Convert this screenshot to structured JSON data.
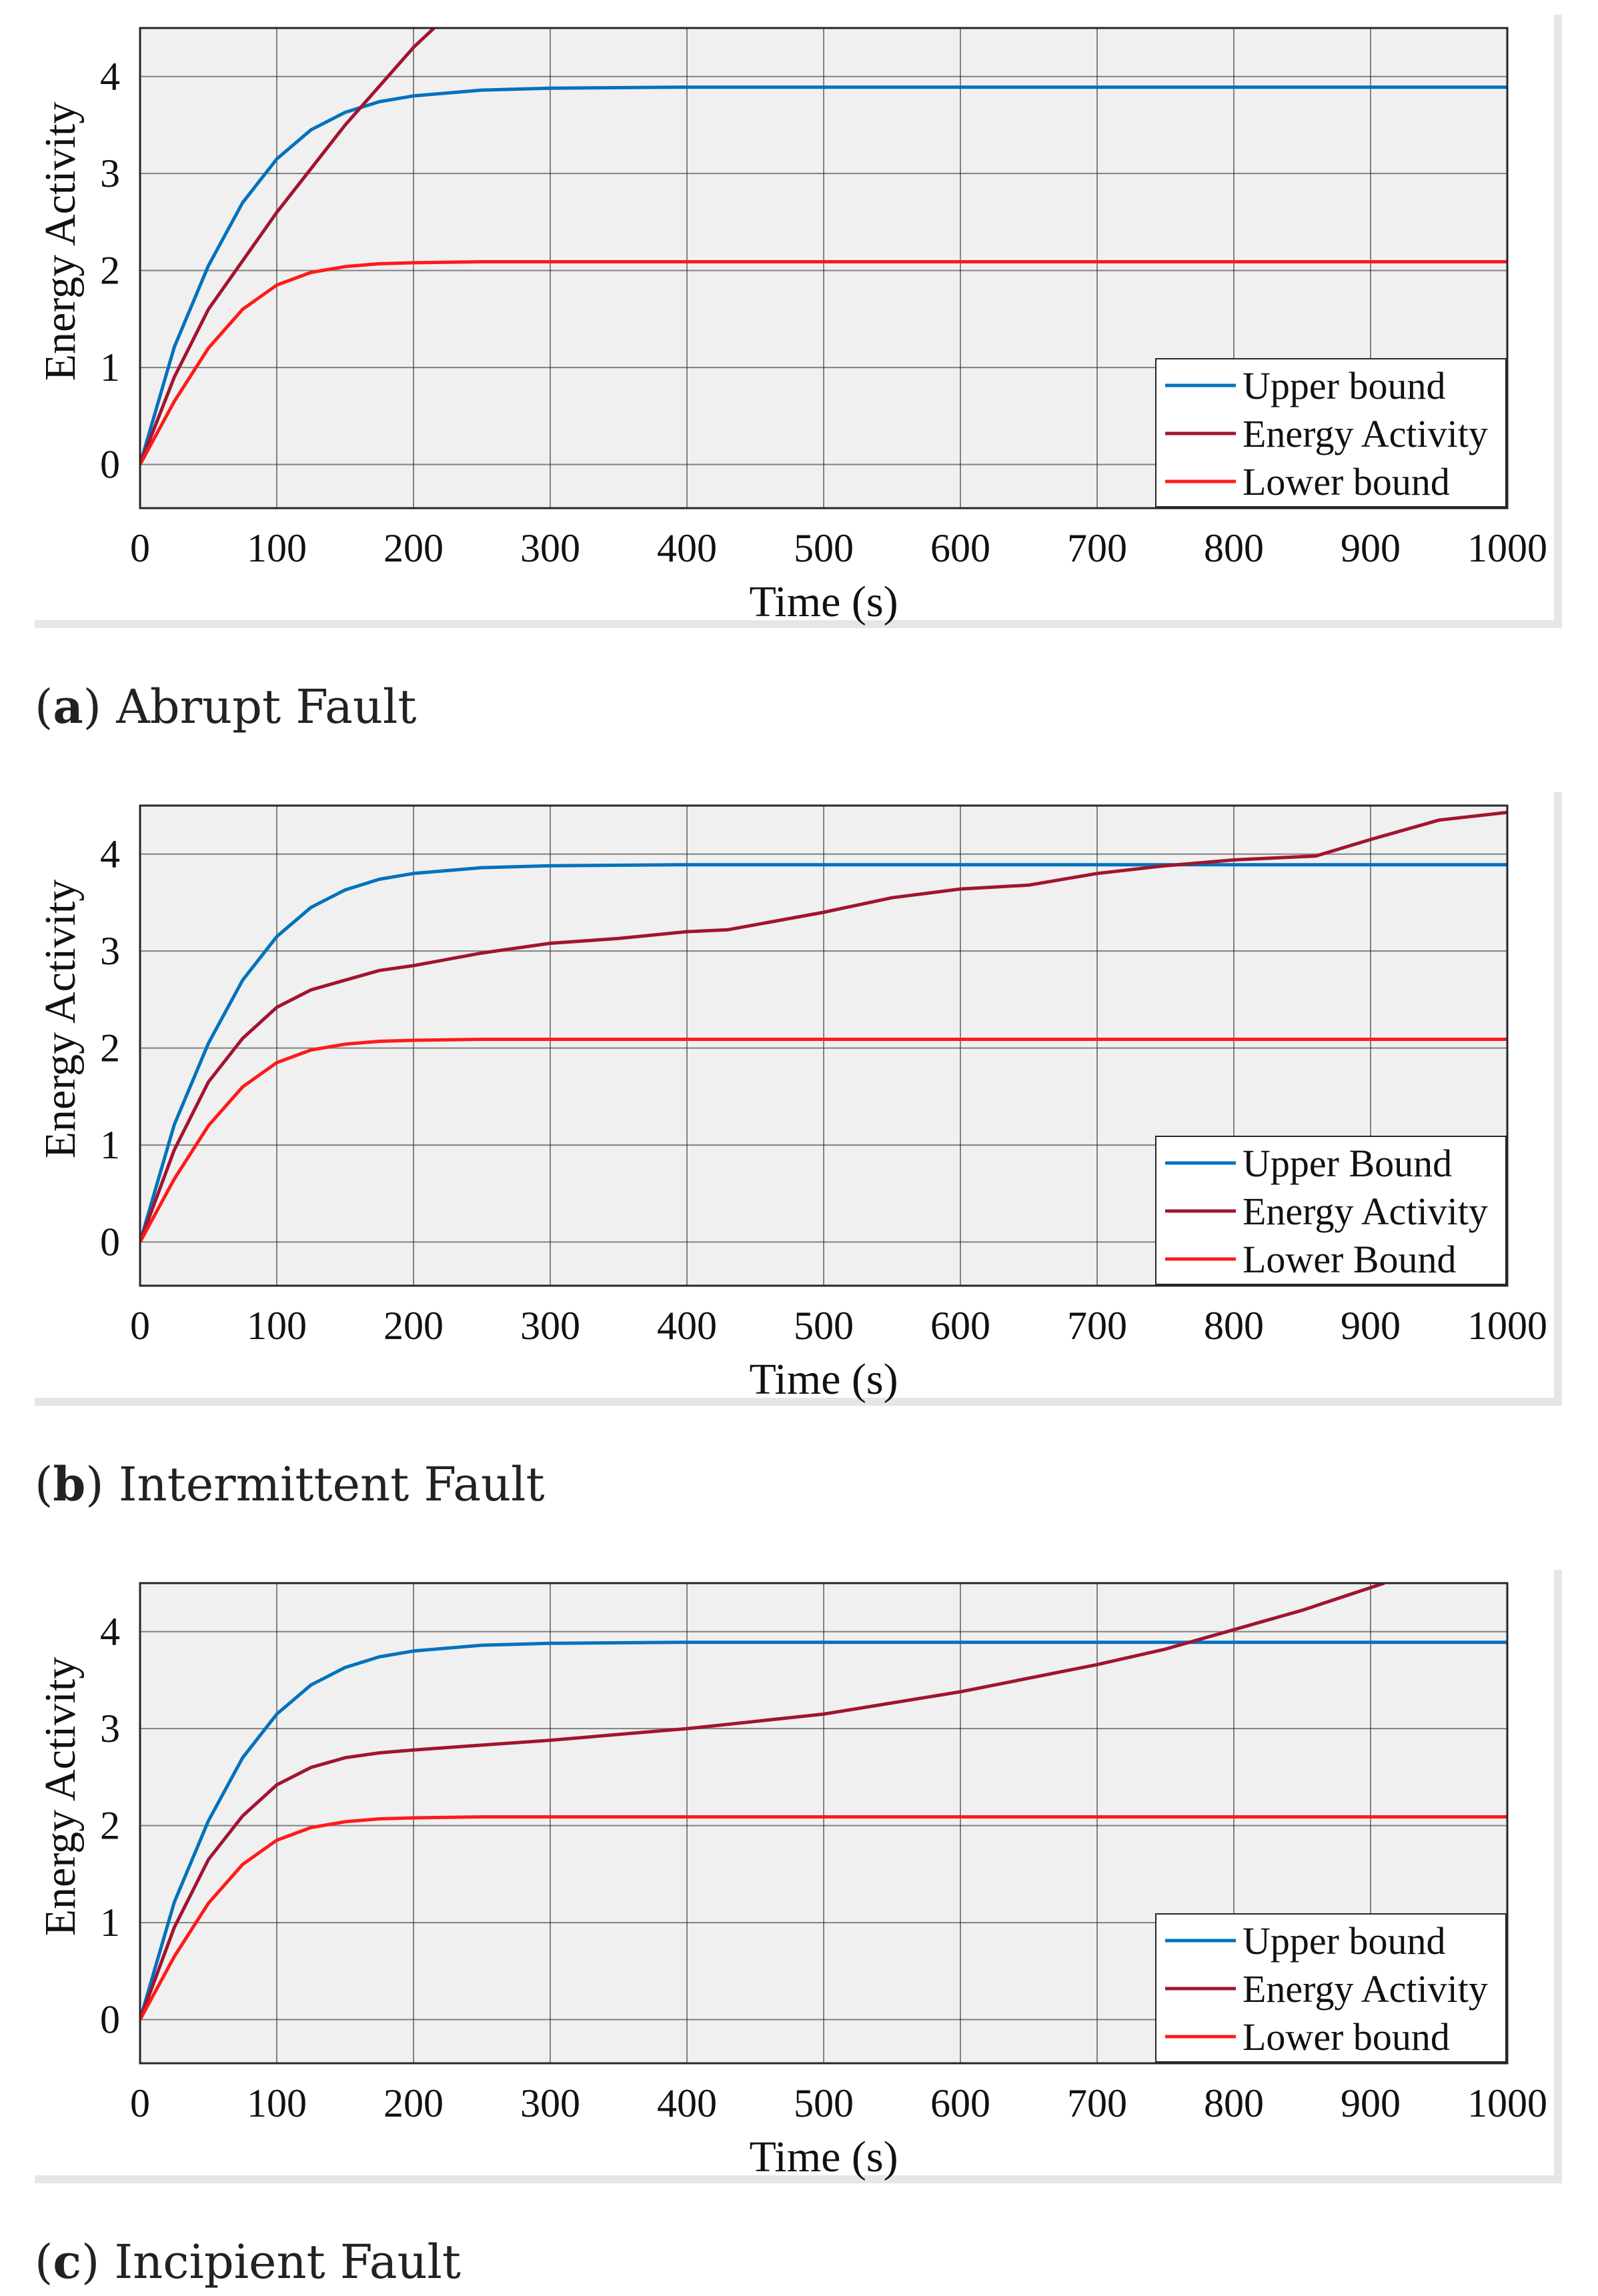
{
  "chart_data": [
    {
      "type": "line",
      "panel_label": "a",
      "caption": "Abrupt Fault",
      "xlabel": "Time (s)",
      "ylabel": "Energy Activity",
      "xlim": [
        0,
        1000
      ],
      "ylim": [
        -0.45,
        4.5
      ],
      "xticks": [
        "0",
        "100",
        "200",
        "300",
        "400",
        "500",
        "600",
        "700",
        "800",
        "900",
        "1000"
      ],
      "yticks": [
        "0",
        "1",
        "2",
        "3",
        "4"
      ],
      "grid": true,
      "legend_position": "bottom-right",
      "series": [
        {
          "name": "Upper bound",
          "color": "#0072BD",
          "x": [
            0,
            25,
            50,
            75,
            100,
            125,
            150,
            175,
            200,
            250,
            300,
            400,
            500,
            600,
            700,
            800,
            900,
            1000
          ],
          "y": [
            0,
            1.21,
            2.05,
            2.7,
            3.15,
            3.45,
            3.63,
            3.74,
            3.8,
            3.86,
            3.88,
            3.89,
            3.89,
            3.89,
            3.89,
            3.89,
            3.89,
            3.89
          ]
        },
        {
          "name": "Energy Activity",
          "color": "#A2142F",
          "x": [
            0,
            25,
            50,
            75,
            100,
            125,
            150,
            175,
            200,
            215
          ],
          "y": [
            0,
            0.9,
            1.6,
            2.1,
            2.6,
            3.05,
            3.5,
            3.9,
            4.3,
            4.5
          ]
        },
        {
          "name": "Lower bound",
          "color": "#FF1A1A",
          "x": [
            0,
            25,
            50,
            75,
            100,
            125,
            150,
            175,
            200,
            250,
            300,
            400,
            500,
            600,
            700,
            800,
            900,
            1000
          ],
          "y": [
            0,
            0.65,
            1.2,
            1.6,
            1.85,
            1.98,
            2.04,
            2.07,
            2.08,
            2.09,
            2.09,
            2.09,
            2.09,
            2.09,
            2.09,
            2.09,
            2.09,
            2.09
          ]
        }
      ]
    },
    {
      "type": "line",
      "panel_label": "b",
      "caption": "Intermittent Fault",
      "xlabel": "Time (s)",
      "ylabel": "Energy Activity",
      "xlim": [
        0,
        1000
      ],
      "ylim": [
        -0.45,
        4.5
      ],
      "xticks": [
        "0",
        "100",
        "200",
        "300",
        "400",
        "500",
        "600",
        "700",
        "800",
        "900",
        "1000"
      ],
      "yticks": [
        "0",
        "1",
        "2",
        "3",
        "4"
      ],
      "grid": true,
      "legend_position": "bottom-right",
      "series": [
        {
          "name": "Upper Bound",
          "color": "#0072BD",
          "x": [
            0,
            25,
            50,
            75,
            100,
            125,
            150,
            175,
            200,
            250,
            300,
            400,
            500,
            600,
            700,
            800,
            900,
            1000
          ],
          "y": [
            0,
            1.21,
            2.05,
            2.7,
            3.15,
            3.45,
            3.63,
            3.74,
            3.8,
            3.86,
            3.88,
            3.89,
            3.89,
            3.89,
            3.89,
            3.89,
            3.89,
            3.89
          ]
        },
        {
          "name": "Energy Activity",
          "color": "#A2142F",
          "x": [
            0,
            25,
            50,
            75,
            100,
            125,
            150,
            175,
            200,
            250,
            300,
            350,
            400,
            430,
            500,
            550,
            600,
            650,
            700,
            750,
            800,
            860,
            900,
            950,
            1000
          ],
          "y": [
            0,
            0.95,
            1.65,
            2.1,
            2.42,
            2.6,
            2.7,
            2.8,
            2.85,
            2.98,
            3.08,
            3.13,
            3.2,
            3.22,
            3.4,
            3.55,
            3.64,
            3.68,
            3.8,
            3.88,
            3.94,
            3.98,
            4.15,
            4.35,
            4.43
          ]
        },
        {
          "name": "Lower Bound",
          "color": "#FF1A1A",
          "x": [
            0,
            25,
            50,
            75,
            100,
            125,
            150,
            175,
            200,
            250,
            300,
            400,
            500,
            600,
            700,
            800,
            900,
            1000
          ],
          "y": [
            0,
            0.65,
            1.2,
            1.6,
            1.85,
            1.98,
            2.04,
            2.07,
            2.08,
            2.09,
            2.09,
            2.09,
            2.09,
            2.09,
            2.09,
            2.09,
            2.09,
            2.09
          ]
        }
      ]
    },
    {
      "type": "line",
      "panel_label": "c",
      "caption": "Incipient Fault",
      "xlabel": "Time (s)",
      "ylabel": "Energy Activity",
      "xlim": [
        0,
        1000
      ],
      "ylim": [
        -0.45,
        4.5
      ],
      "xticks": [
        "0",
        "100",
        "200",
        "300",
        "400",
        "500",
        "600",
        "700",
        "800",
        "900",
        "1000"
      ],
      "yticks": [
        "0",
        "1",
        "2",
        "3",
        "4"
      ],
      "grid": true,
      "legend_position": "bottom-right",
      "series": [
        {
          "name": "Upper bound",
          "color": "#0072BD",
          "x": [
            0,
            25,
            50,
            75,
            100,
            125,
            150,
            175,
            200,
            250,
            300,
            400,
            500,
            600,
            700,
            800,
            900,
            1000
          ],
          "y": [
            0,
            1.21,
            2.05,
            2.7,
            3.15,
            3.45,
            3.63,
            3.74,
            3.8,
            3.86,
            3.88,
            3.89,
            3.89,
            3.89,
            3.89,
            3.89,
            3.89,
            3.89
          ]
        },
        {
          "name": "Energy Activity",
          "color": "#A2142F",
          "x": [
            0,
            25,
            50,
            75,
            100,
            125,
            150,
            175,
            200,
            250,
            300,
            400,
            500,
            600,
            700,
            750,
            800,
            850,
            910
          ],
          "y": [
            0,
            0.95,
            1.65,
            2.1,
            2.42,
            2.6,
            2.7,
            2.75,
            2.78,
            2.83,
            2.88,
            3.0,
            3.15,
            3.38,
            3.66,
            3.82,
            4.02,
            4.22,
            4.5
          ]
        },
        {
          "name": "Lower bound",
          "color": "#FF1A1A",
          "x": [
            0,
            25,
            50,
            75,
            100,
            125,
            150,
            175,
            200,
            250,
            300,
            400,
            500,
            600,
            700,
            800,
            900,
            1000
          ],
          "y": [
            0,
            0.65,
            1.2,
            1.6,
            1.85,
            1.98,
            2.04,
            2.07,
            2.08,
            2.09,
            2.09,
            2.09,
            2.09,
            2.09,
            2.09,
            2.09,
            2.09,
            2.09
          ]
        }
      ]
    }
  ]
}
